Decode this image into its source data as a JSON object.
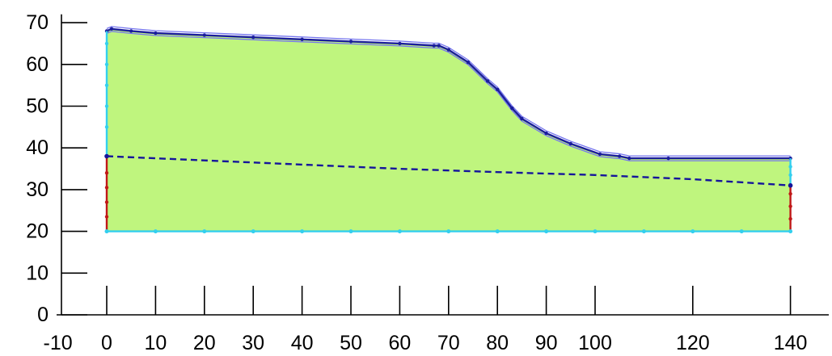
{
  "chart_data": {
    "type": "area",
    "title": "",
    "xlabel": "",
    "ylabel": "",
    "xlim": [
      -10,
      145
    ],
    "ylim": [
      0,
      72
    ],
    "grid": false,
    "x_ticks": [
      "-10",
      "0",
      "10",
      "20",
      "30",
      "40",
      "50",
      "60",
      "70",
      "80",
      "90",
      "100",
      "120",
      "140"
    ],
    "x_tick_values": [
      -10,
      0,
      10,
      20,
      30,
      40,
      50,
      60,
      70,
      80,
      90,
      100,
      120,
      140
    ],
    "y_ticks": [
      "0",
      "10",
      "20",
      "30",
      "40",
      "50",
      "60",
      "70"
    ],
    "y_tick_values": [
      0,
      10,
      20,
      30,
      40,
      50,
      60,
      70
    ],
    "series": [
      {
        "role": "ground surface",
        "x": [
          0,
          1,
          5,
          10,
          20,
          30,
          40,
          50,
          60,
          67,
          68,
          70,
          74,
          78,
          80,
          83,
          85,
          90,
          95,
          101,
          105,
          107,
          115,
          140
        ],
        "y": [
          68,
          68.5,
          68,
          67.5,
          67,
          66.5,
          66,
          65.5,
          65,
          64.5,
          64.5,
          63.5,
          60.5,
          56,
          54,
          49.5,
          47,
          43.5,
          41,
          38.5,
          38,
          37.5,
          37.5,
          37.5
        ]
      },
      {
        "role": "water table",
        "x": [
          0,
          20,
          40,
          60,
          80,
          100,
          120,
          140
        ],
        "y": [
          38,
          37,
          36,
          35,
          34.2,
          33.5,
          32.5,
          31
        ]
      },
      {
        "role": "base",
        "x": [
          0,
          140
        ],
        "y": [
          20,
          20
        ]
      }
    ],
    "colors": {
      "fill": "#bff57e",
      "surface": "#1b1e9c",
      "surface_outline": "#7575ee",
      "water_table": "#15159b",
      "boundary": "#33cfee",
      "fixed_boundary": "#c01818",
      "axis": "#000000"
    }
  }
}
